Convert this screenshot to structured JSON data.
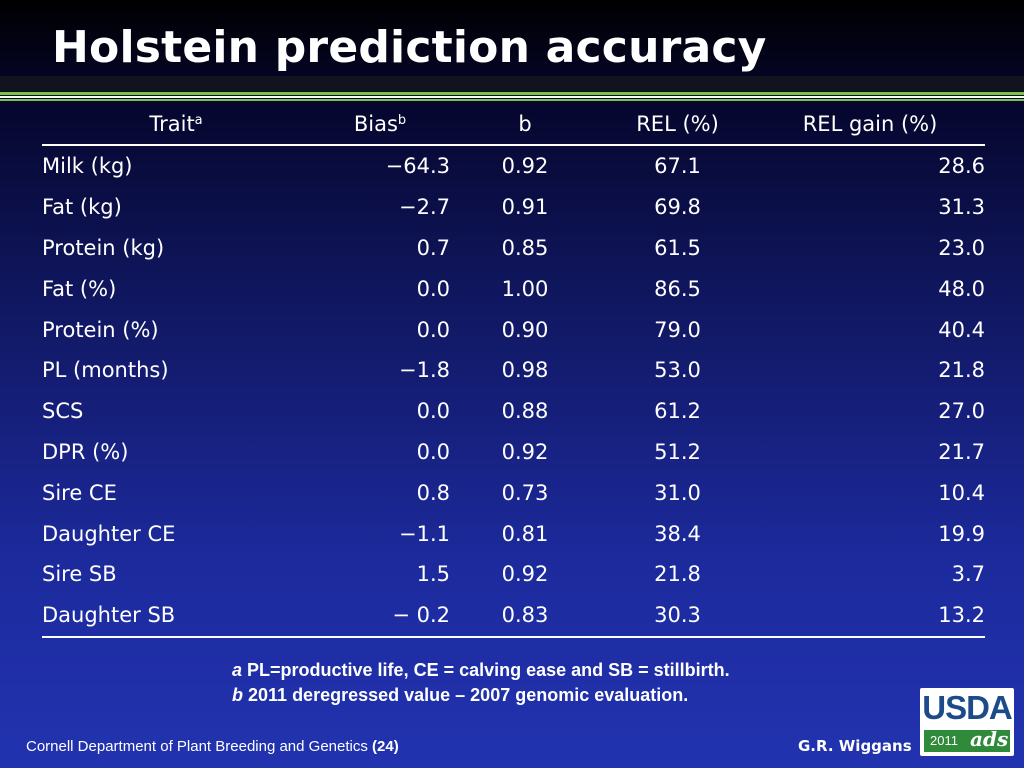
{
  "title": "Holstein prediction accuracy",
  "table": {
    "headers": {
      "trait": "Trait",
      "trait_sup": "a",
      "bias": "Bias",
      "bias_sup": "b",
      "b": "b",
      "rel": "REL (%)",
      "rel_gain": "REL gain (%)"
    },
    "rows": [
      {
        "trait": "Milk (kg)",
        "bias": "−64.3",
        "b": "0.92",
        "rel": "67.1",
        "gain": "28.6"
      },
      {
        "trait": "Fat (kg)",
        "bias": "−2.7",
        "b": "0.91",
        "rel": "69.8",
        "gain": "31.3"
      },
      {
        "trait": "Protein (kg)",
        "bias": "0.7",
        "b": "0.85",
        "rel": "61.5",
        "gain": "23.0"
      },
      {
        "trait": "Fat (%)",
        "bias": "0.0",
        "b": "1.00",
        "rel": "86.5",
        "gain": "48.0"
      },
      {
        "trait": "Protein (%)",
        "bias": "0.0",
        "b": "0.90",
        "rel": "79.0",
        "gain": "40.4"
      },
      {
        "trait": "PL (months)",
        "bias": "−1.8",
        "b": "0.98",
        "rel": "53.0",
        "gain": "21.8"
      },
      {
        "trait": "SCS",
        "bias": "0.0",
        "b": "0.88",
        "rel": "61.2",
        "gain": "27.0"
      },
      {
        "trait": "DPR (%)",
        "bias": "0.0",
        "b": "0.92",
        "rel": "51.2",
        "gain": "21.7"
      },
      {
        "trait": "Sire CE",
        "bias": "0.8",
        "b": "0.73",
        "rel": "31.0",
        "gain": "10.4"
      },
      {
        "trait": "Daughter CE",
        "bias": "−1.1",
        "b": "0.81",
        "rel": "38.4",
        "gain": "19.9"
      },
      {
        "trait": "Sire SB",
        "bias": "1.5",
        "b": "0.92",
        "rel": "21.8",
        "gain": "3.7"
      },
      {
        "trait": "Daughter SB",
        "bias": "− 0.2",
        "b": "0.83",
        "rel": "30.3",
        "gain": "13.2"
      }
    ]
  },
  "footnotes": [
    {
      "letter": "a",
      "text": "PL=productive life, CE = calving ease and SB = stillbirth."
    },
    {
      "letter": "b",
      "text": "2011 deregressed value – 2007 genomic evaluation."
    }
  ],
  "footer": {
    "left": "Cornell Department of Plant Breeding and Genetics",
    "page": "(24)",
    "right": "G.R. Wiggans"
  },
  "logo": {
    "word": "USDA",
    "year": "2011",
    "mark": "ads"
  },
  "colors": {
    "accent_green": "#7fc24a",
    "logo_blue": "#1c4a8a",
    "logo_green": "#2f8a3a"
  }
}
